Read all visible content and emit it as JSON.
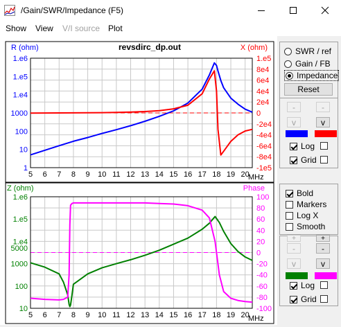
{
  "window": {
    "title": "/Gain/SWR/Impedance (F5)"
  },
  "menu": {
    "show": "Show",
    "view": "View",
    "vi_source": "V/I source",
    "plot": "Plot"
  },
  "colors": {
    "blue": "#0000ff",
    "red": "#ff0000",
    "green": "#008000",
    "magenta": "#ff00ff",
    "grid": "#c8c8c8"
  },
  "chart_data": [
    {
      "type": "line",
      "title": "revsdirc_dp.out",
      "x_unit": "MHz",
      "x": [
        5,
        6,
        7,
        8,
        9,
        10,
        11,
        12,
        13,
        14,
        15,
        16,
        17,
        17.5,
        17.85,
        18,
        18.1,
        18.3,
        18.5,
        19,
        19.5,
        20,
        20.5
      ],
      "xlim": [
        5,
        20.5
      ],
      "x_ticks": [
        "5",
        "6",
        "7",
        "8",
        "9",
        "10",
        "11",
        "12",
        "13",
        "14",
        "15",
        "16",
        "17",
        "18",
        "19",
        "20"
      ],
      "left_axis": {
        "label": "R (ohm)",
        "scale": "log",
        "ylim": [
          1,
          1000000
        ],
        "ticks": [
          "1",
          "10",
          "100",
          "1000",
          "1.e4",
          "1.e5",
          "1.e6"
        ]
      },
      "right_axis": {
        "label": "X (ohm)",
        "ylim": [
          -100000.0,
          100000.0
        ],
        "ticks": [
          "1.e5",
          "8e4",
          "6e4",
          "4e4",
          "2e4",
          "0",
          "-2e4",
          "-4e4",
          "-6e4",
          "-8e4",
          "-1e5"
        ]
      },
      "series": [
        {
          "axis": "left",
          "color": "#0000ff",
          "values": [
            5,
            9,
            16,
            28,
            45,
            75,
            120,
            200,
            350,
            650,
            1300,
            3500,
            20000,
            120000,
            550000,
            400000,
            200000,
            60000,
            24000,
            6500,
            3000,
            1600,
            1100
          ]
        },
        {
          "axis": "right",
          "color": "#ff0000",
          "values": [
            -200,
            -100,
            0,
            100,
            300,
            500,
            900,
            1500,
            2500,
            4200,
            7500,
            14000,
            35000,
            62000,
            77000,
            40000,
            -30000,
            -77000,
            -70000,
            -52000,
            -40000,
            -33000,
            -30000
          ]
        }
      ]
    },
    {
      "type": "line",
      "x_unit": "MHz",
      "x": [
        5,
        6,
        7,
        7.3,
        7.6,
        7.7,
        7.75,
        7.8,
        7.9,
        8,
        9,
        10,
        11,
        12,
        13,
        14,
        15,
        16,
        17,
        17.5,
        17.9,
        18.2,
        18.5,
        19,
        19.5,
        20,
        20.5
      ],
      "xlim": [
        5,
        20.5
      ],
      "x_ticks": [
        "5",
        "6",
        "7",
        "8",
        "9",
        "10",
        "11",
        "12",
        "13",
        "14",
        "15",
        "16",
        "17",
        "18",
        "19",
        "20"
      ],
      "left_axis": {
        "label": "Z (ohm)",
        "scale": "log",
        "ylim": [
          10,
          1000000
        ],
        "ticks": [
          "10",
          "100",
          "1000",
          "5000",
          "1.e4",
          "1.e5",
          "1.e6"
        ],
        "extra_labels": [
          "1.e6",
          "1.e5",
          "1.e4",
          "5000",
          "1000",
          "100",
          "10"
        ]
      },
      "right_axis": {
        "label": "Phase",
        "ylim": [
          -100,
          100
        ],
        "ticks": [
          "100",
          "80",
          "60",
          "40",
          "20",
          "0",
          "-20",
          "-40",
          "-60",
          "-80",
          "-100"
        ]
      },
      "series": [
        {
          "axis": "left",
          "color": "#008000",
          "values": [
            1100,
            700,
            350,
            150,
            40,
            15,
            12,
            14,
            40,
            120,
            350,
            650,
            1000,
            1500,
            2400,
            4000,
            7500,
            14000,
            35000,
            65000,
            130000,
            70000,
            28000,
            8000,
            3500,
            2000,
            1400
          ]
        },
        {
          "axis": "right",
          "color": "#ff00ff",
          "values": [
            -82,
            -84,
            -85,
            -84,
            -80,
            -40,
            50,
            85,
            88,
            89,
            89,
            89,
            89,
            89,
            89,
            88,
            87,
            84,
            76,
            62,
            20,
            -40,
            -70,
            -82,
            -86,
            -88,
            -89
          ]
        }
      ]
    }
  ],
  "panel_top": {
    "radios": [
      {
        "label": "SWR / ref",
        "checked": false
      },
      {
        "label": "Gain / FB",
        "checked": false
      },
      {
        "label": "Impedance",
        "checked": true
      }
    ],
    "reset_label": "Reset",
    "minus_label": "-",
    "v_label": "v",
    "log_label": "Log",
    "grid_label": "Grid",
    "log_checked": true,
    "grid_checked": true
  },
  "panel_bottom": {
    "checks": [
      {
        "label": "Bold",
        "checked": true
      },
      {
        "label": "Markers",
        "checked": false
      },
      {
        "label": "Log X",
        "checked": false
      },
      {
        "label": "Smooth",
        "checked": false
      }
    ],
    "plus_label": "+",
    "minus_label": "-",
    "v_label": "v",
    "log_label": "Log",
    "grid_label": "Grid",
    "log_checked": true,
    "grid_checked": true
  }
}
